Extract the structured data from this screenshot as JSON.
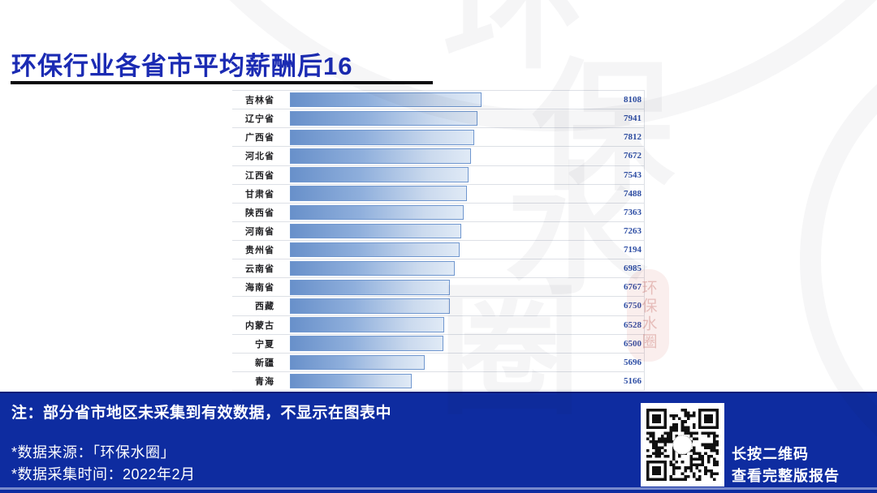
{
  "title": "环保行业各省市平均薪酬后16",
  "chart_data": {
    "type": "bar",
    "orientation": "horizontal",
    "title": "环保行业各省市平均薪酬后16",
    "categories": [
      "吉林省",
      "辽宁省",
      "广西省",
      "河北省",
      "江西省",
      "甘肃省",
      "陕西省",
      "河南省",
      "贵州省",
      "云南省",
      "海南省",
      "西藏",
      "内蒙古",
      "宁夏",
      "新疆",
      "青海"
    ],
    "values": [
      8108,
      7941,
      7812,
      7672,
      7543,
      7488,
      7363,
      7263,
      7194,
      6985,
      6767,
      6750,
      6528,
      6500,
      5696,
      5166
    ],
    "value_axis_max": 8108,
    "grid": "horizontal-row-separators",
    "value_labels_position": "right",
    "legend": "none"
  },
  "watermark": {
    "brand_chars": [
      "环",
      "保",
      "水",
      "圈"
    ],
    "seal_text": "环保水圈"
  },
  "footer": {
    "note": "注：部分省市地区未采集到有效数据，不显示在图表中",
    "source": "*数据来源：「环保水圈」",
    "collect_time": "*数据采集时间：2022年2月",
    "qr_caption_line1": "长按二维码",
    "qr_caption_line2": "查看完整版报告"
  },
  "colors": {
    "title_text": "#1b2bb3",
    "footer_bg": "#0e2ca0",
    "bar_fill_start": "#6890ca",
    "bar_fill_end": "#e0eaf6",
    "bar_border": "#7097cf",
    "value_text": "#2f4fa5",
    "label_text": "#1f1f22",
    "grid_line": "#dde0e6"
  }
}
